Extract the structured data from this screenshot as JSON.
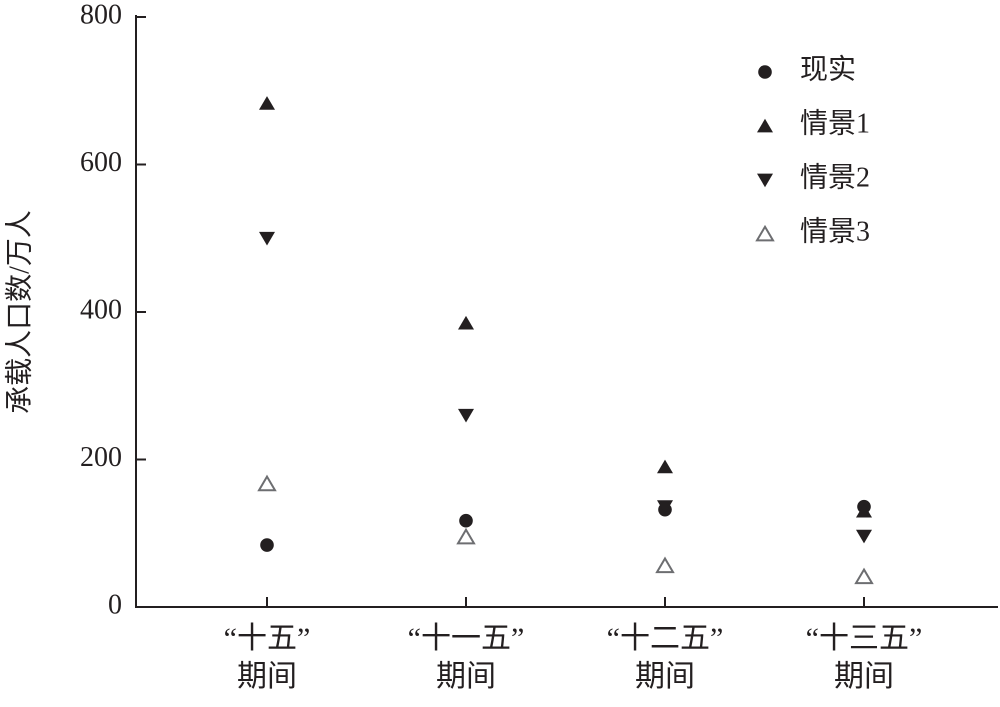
{
  "chart_data": {
    "type": "scatter",
    "y_label": "承载人口数/万人",
    "categories": [
      "“十五”\n期间",
      "“十一五”\n期间",
      "“十二五”\n期间",
      "“十三五”\n期间"
    ],
    "series": [
      {
        "name": "现实",
        "color": "#231f20",
        "marker": "circle",
        "values": [
          84,
          117,
          132,
          136
        ]
      },
      {
        "name": "情景1",
        "color": "#231f20",
        "marker": "triangle-up",
        "values": [
          683,
          385,
          190,
          130
        ]
      },
      {
        "name": "情景2",
        "color": "#231f20",
        "marker": "triangle-down",
        "values": [
          500,
          260,
          136,
          96
        ]
      },
      {
        "name": "情景3",
        "color": "#6d6e71",
        "marker": "triangle-up-open",
        "values": [
          167,
          95,
          56,
          41
        ]
      }
    ],
    "ylim": [
      0,
      800
    ],
    "yticks": [
      0,
      200,
      400,
      600,
      800
    ],
    "grid": false,
    "legend": "top-right"
  }
}
